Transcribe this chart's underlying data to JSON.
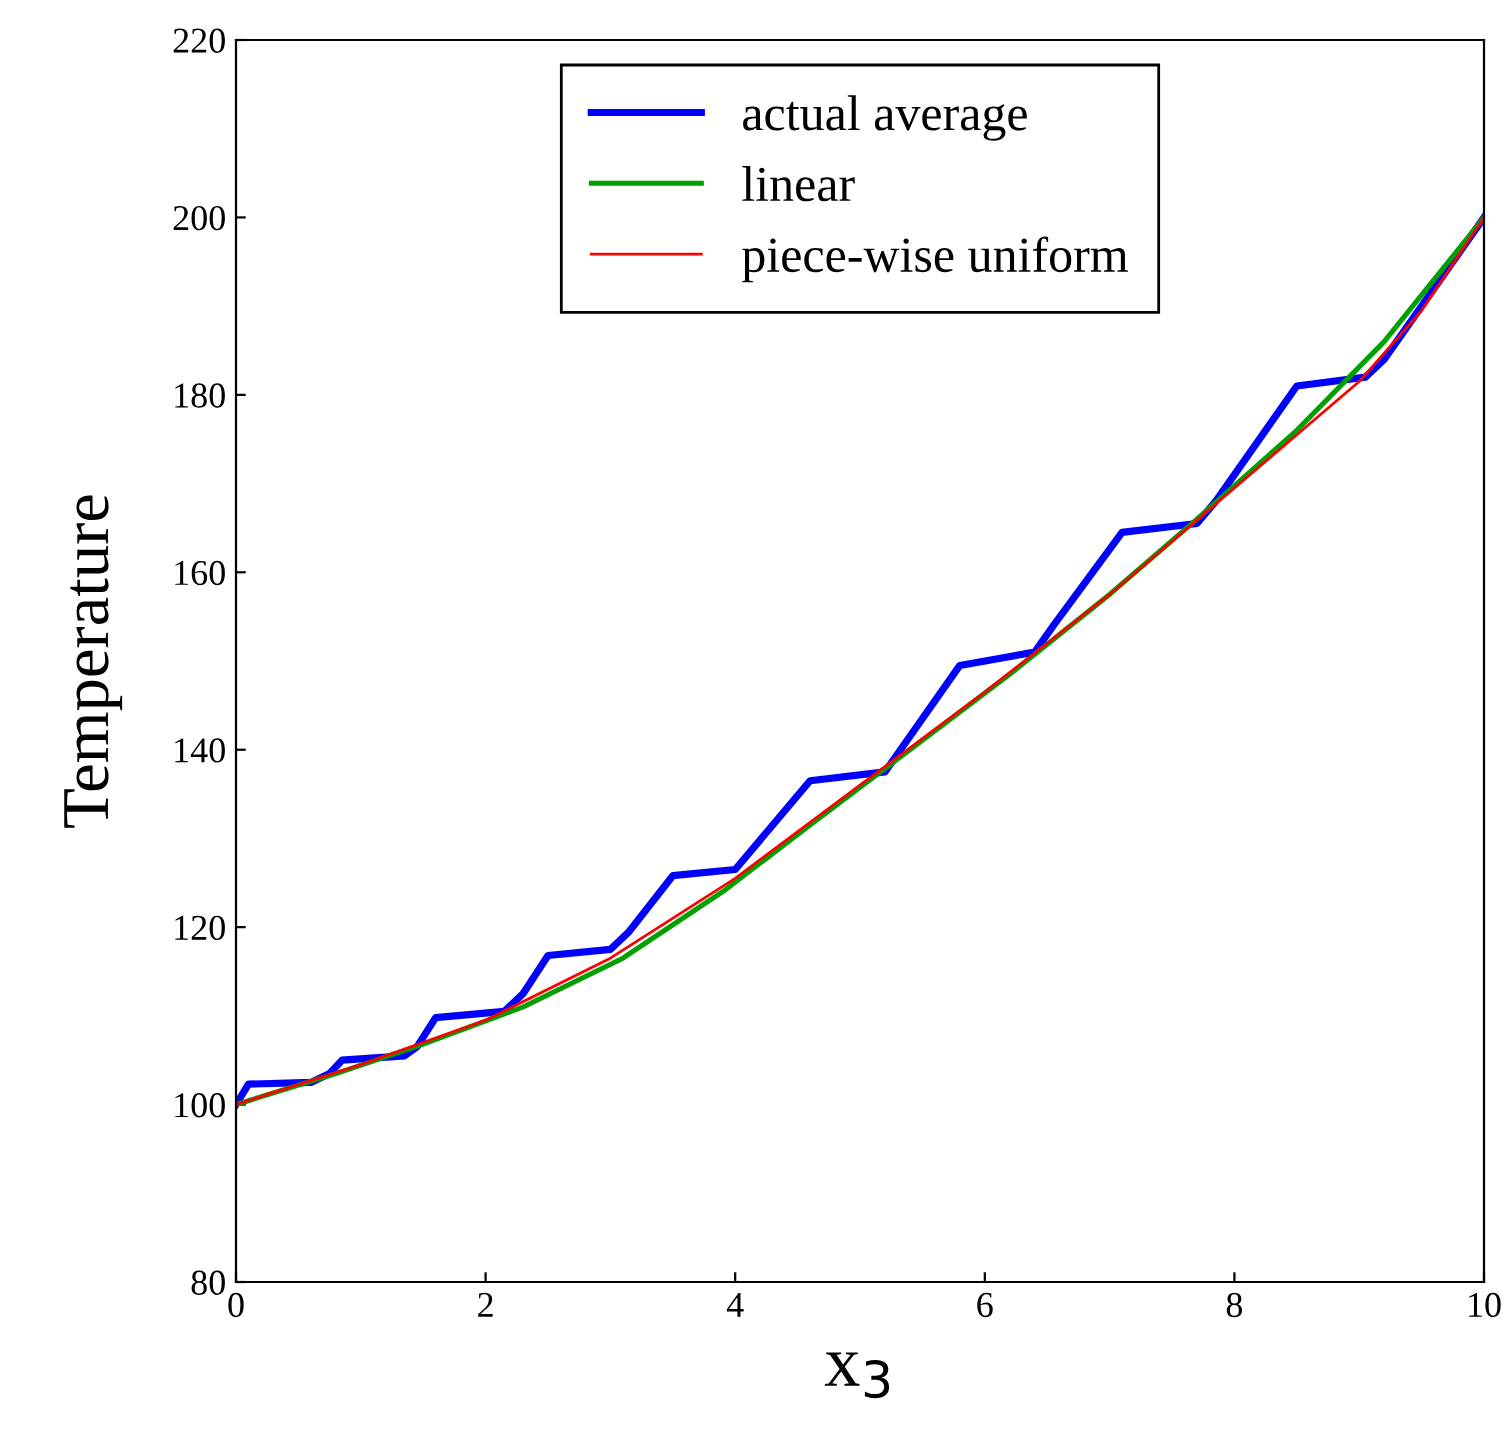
{
  "chart_data": {
    "type": "line",
    "xlabel": "x$_{3}$",
    "ylabel": "Temperature",
    "xlim": [
      0,
      10
    ],
    "ylim": [
      80,
      220
    ],
    "xticks": [
      0,
      2,
      4,
      6,
      8,
      10
    ],
    "yticks": [
      80,
      100,
      120,
      140,
      160,
      180,
      200,
      220
    ],
    "grid": false,
    "legend": "top",
    "marker": "none",
    "line_style": "solid",
    "series": [
      {
        "name": "actual average",
        "color": "#0000ff",
        "x": [
          0,
          0.1,
          0.6,
          0.75,
          0.85,
          1.35,
          1.45,
          1.6,
          2.15,
          2.3,
          2.5,
          3.0,
          3.15,
          3.5,
          4.0,
          4.15,
          4.6,
          5.2,
          5.35,
          5.8,
          6.4,
          6.55,
          7.1,
          7.7,
          7.85,
          8.5,
          9.05,
          9.2,
          9.5,
          10
        ],
        "values": [
          100,
          102.3,
          102.5,
          103.5,
          105,
          105.5,
          106.5,
          109.8,
          110.5,
          112.5,
          116.8,
          117.5,
          119.5,
          125.8,
          126.5,
          129,
          136.5,
          137.5,
          140.5,
          149.5,
          151,
          154,
          164.5,
          165.5,
          168,
          181,
          182,
          184,
          190,
          200
        ]
      },
      {
        "name": "linear",
        "color": "#00a000",
        "x": [
          0,
          0.8,
          1.5,
          2.3,
          3.1,
          3.9,
          4.6,
          5.4,
          6.2,
          7.0,
          7.7,
          8.5,
          9.2,
          10
        ],
        "values": [
          100,
          103.5,
          106.8,
          111,
          116.5,
          124,
          131.5,
          140,
          148.5,
          157.5,
          166,
          176,
          186,
          200
        ]
      },
      {
        "name": "piece-wise uniform",
        "color": "#ff0000",
        "x": [
          0,
          1,
          2,
          3,
          4,
          5,
          6,
          7,
          8,
          8.5,
          9,
          9.5,
          10
        ],
        "values": [
          100,
          104.5,
          109.5,
          116.5,
          125.5,
          136,
          146.5,
          157.5,
          169.5,
          175.5,
          181.5,
          189.5,
          200
        ]
      }
    ]
  }
}
